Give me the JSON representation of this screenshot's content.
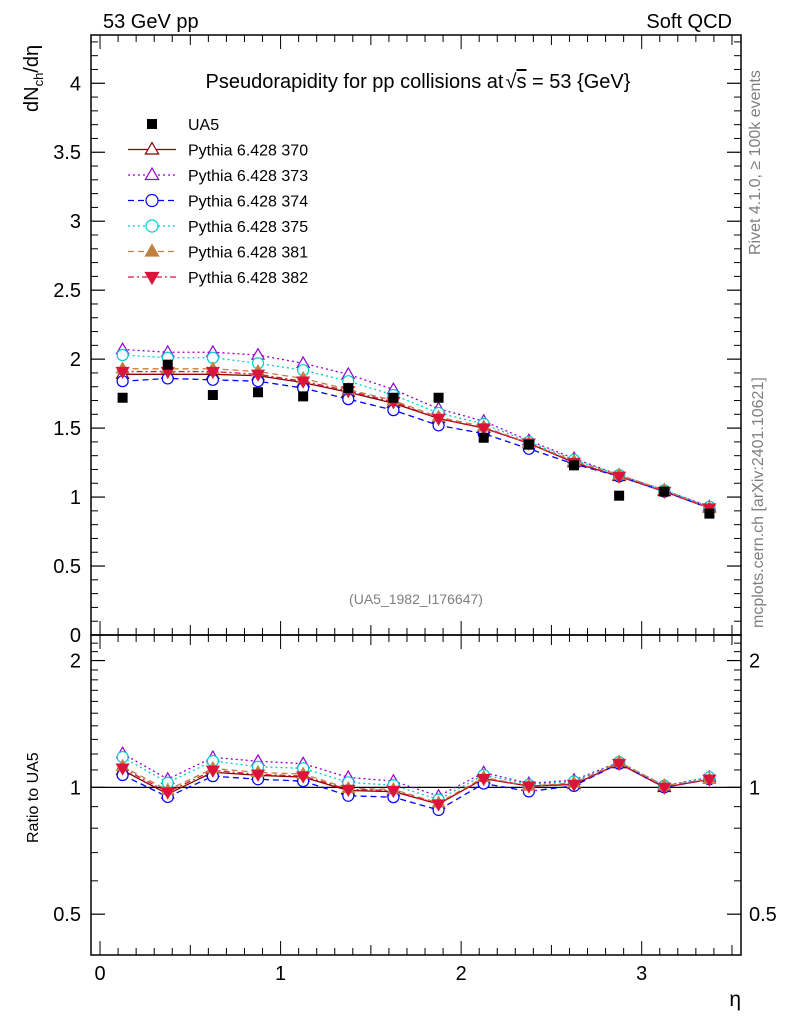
{
  "header": {
    "left_label": "53 GeV pp",
    "right_label": "Soft QCD"
  },
  "side_labels": {
    "rivet": "Rivet 4.1.0, ≥ 100k events",
    "mcplots": "mcplots.cern.ch [arXiv:2401.10621]"
  },
  "chart_data": [
    {
      "type": "scatter",
      "panel": "main",
      "title_prefix": "Pseudorapidity for pp collisions at",
      "title_sqrt_symbol": "√",
      "title_sqrt_var": "s",
      "title_suffix": " = 53 {GeV}",
      "ylabel_main": "dN",
      "ylabel_sub": "ch",
      "ylabel_tail": "/dη",
      "xlabel": "η",
      "analysis_tag": "(UA5_1982_I176647)",
      "xlim": [
        -0.05,
        3.55
      ],
      "ylim": [
        0,
        4.35
      ],
      "x_ticks": [
        "0",
        "1",
        "2",
        "3"
      ],
      "x_tick_values": [
        0,
        1,
        2,
        3
      ],
      "y_ticks": [
        "0",
        "0.5",
        "1",
        "1.5",
        "2",
        "2.5",
        "3",
        "3.5",
        "4"
      ],
      "y_tick_values": [
        0,
        0.5,
        1,
        1.5,
        2,
        2.5,
        3,
        3.5,
        4
      ],
      "x": [
        0.125,
        0.375,
        0.625,
        0.875,
        1.125,
        1.375,
        1.625,
        1.875,
        2.125,
        2.375,
        2.625,
        2.875,
        3.125,
        3.375
      ],
      "data_series": {
        "name": "UA5",
        "color": "#000000",
        "values": [
          1.72,
          1.96,
          1.74,
          1.76,
          1.73,
          1.79,
          1.72,
          1.72,
          1.43,
          1.38,
          1.23,
          1.01,
          1.04,
          0.88
        ]
      },
      "series": [
        {
          "name": "Pythia 6.428 370",
          "color": "#8b0000",
          "dash": "",
          "marker": "triangle-open",
          "values": [
            1.89,
            1.89,
            1.89,
            1.88,
            1.83,
            1.76,
            1.68,
            1.57,
            1.5,
            1.39,
            1.25,
            1.15,
            1.04,
            0.92
          ]
        },
        {
          "name": "Pythia 6.428 373",
          "color": "#9400d3",
          "dash": "2,3",
          "marker": "triangle-open",
          "values": [
            2.07,
            2.05,
            2.05,
            2.03,
            1.97,
            1.89,
            1.78,
            1.64,
            1.55,
            1.41,
            1.28,
            1.16,
            1.05,
            0.93
          ]
        },
        {
          "name": "Pythia 6.428 374",
          "color": "#0000ff",
          "dash": "6,4",
          "marker": "circle-open",
          "values": [
            1.84,
            1.86,
            1.85,
            1.84,
            1.79,
            1.71,
            1.63,
            1.52,
            1.46,
            1.35,
            1.24,
            1.15,
            1.04,
            0.92
          ]
        },
        {
          "name": "Pythia 6.428 375",
          "color": "#00cdcd",
          "dash": "2,3",
          "marker": "circle-open",
          "values": [
            2.03,
            2.01,
            2.01,
            1.97,
            1.92,
            1.84,
            1.74,
            1.61,
            1.53,
            1.4,
            1.27,
            1.16,
            1.05,
            0.93
          ]
        },
        {
          "name": "Pythia 6.428 381",
          "color": "#c08040",
          "dash": "6,4",
          "marker": "triangle-filled",
          "values": [
            1.93,
            1.93,
            1.93,
            1.91,
            1.86,
            1.78,
            1.7,
            1.58,
            1.51,
            1.39,
            1.26,
            1.16,
            1.05,
            0.92
          ]
        },
        {
          "name": "Pythia 6.428 382",
          "color": "#dc143c",
          "dash": "6,3,2,3",
          "marker": "triangle-down-filled",
          "values": [
            1.91,
            1.91,
            1.91,
            1.89,
            1.84,
            1.77,
            1.69,
            1.57,
            1.5,
            1.39,
            1.25,
            1.15,
            1.04,
            0.92
          ]
        }
      ]
    },
    {
      "type": "line",
      "panel": "ratio",
      "ylabel": "Ratio to UA5",
      "ylim_log": [
        0.4,
        2.3
      ],
      "y_ticks": [
        "0.5",
        "1",
        "2"
      ],
      "y_tick_values": [
        0.5,
        1,
        2
      ],
      "reference_line": 1
    }
  ]
}
